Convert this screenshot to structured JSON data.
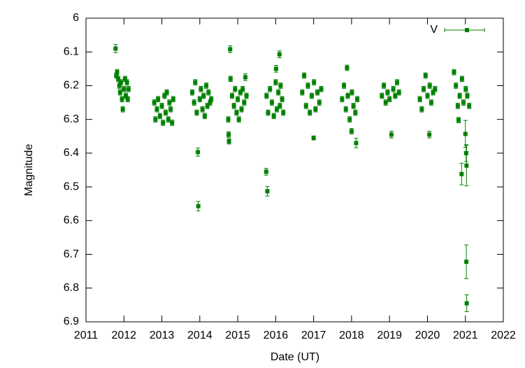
{
  "chart_data": {
    "type": "scatter",
    "x_label": "Date (UT)",
    "y_label": "Magnitude",
    "xlim": [
      2011,
      2022
    ],
    "xticks": [
      2011,
      2012,
      2013,
      2014,
      2015,
      2016,
      2017,
      2018,
      2019,
      2020,
      2021,
      2022
    ],
    "ylim": [
      6,
      6.9
    ],
    "yticks": [
      6,
      6.1,
      6.2,
      6.3,
      6.4,
      6.5,
      6.6,
      6.7,
      6.8,
      6.9
    ],
    "y_inverted": true,
    "legend": "top-right",
    "x": [
      2011.78,
      2011.8,
      2011.82,
      2011.85,
      2011.88,
      2011.9,
      2011.92,
      2011.95,
      2011.97,
      2012.0,
      2012.03,
      2012.05,
      2012.08,
      2012.1,
      2012.12,
      2012.8,
      2012.83,
      2012.87,
      2012.9,
      2012.95,
      2013.0,
      2013.03,
      2013.07,
      2013.1,
      2013.13,
      2013.17,
      2013.2,
      2013.23,
      2013.27,
      2013.3,
      2013.8,
      2013.85,
      2013.88,
      2013.92,
      2013.95,
      2013.96,
      2014.0,
      2014.03,
      2014.07,
      2014.1,
      2014.13,
      2014.17,
      2014.2,
      2014.23,
      2014.27,
      2014.3,
      2014.75,
      2014.76,
      2014.77,
      2014.8,
      2014.81,
      2014.85,
      2014.9,
      2014.93,
      2014.97,
      2015.0,
      2015.03,
      2015.07,
      2015.1,
      2015.13,
      2015.17,
      2015.2,
      2015.23,
      2015.75,
      2015.78,
      2015.76,
      2015.8,
      2015.85,
      2015.9,
      2015.95,
      2016.0,
      2016.01,
      2016.03,
      2016.07,
      2016.1,
      2016.11,
      2016.13,
      2016.17,
      2016.2,
      2016.7,
      2016.75,
      2016.8,
      2016.85,
      2016.9,
      2016.95,
      2017.0,
      2017.01,
      2017.05,
      2017.1,
      2017.15,
      2017.2,
      2017.75,
      2017.8,
      2017.85,
      2017.88,
      2017.9,
      2017.95,
      2018.0,
      2018.01,
      2018.05,
      2018.1,
      2018.12,
      2018.15,
      2018.8,
      2018.85,
      2018.9,
      2018.95,
      2019.0,
      2019.05,
      2019.1,
      2019.15,
      2019.2,
      2019.25,
      2019.8,
      2019.85,
      2019.9,
      2019.95,
      2020.0,
      2020.05,
      2020.06,
      2020.1,
      2020.15,
      2020.2,
      2020.7,
      2020.75,
      2020.8,
      2020.82,
      2020.85,
      2020.9,
      2020.91,
      2020.95,
      2021.0,
      2021.01,
      2021.02,
      2021.03,
      2021.025,
      2021.035,
      2021.05,
      2021.1
    ],
    "series": [
      {
        "name": "V",
        "color": "#008000",
        "values": [
          6.09,
          6.17,
          6.16,
          6.18,
          6.2,
          6.22,
          6.19,
          6.24,
          6.27,
          6.21,
          6.18,
          6.23,
          6.19,
          6.24,
          6.21,
          6.25,
          6.3,
          6.27,
          6.24,
          6.29,
          6.26,
          6.31,
          6.23,
          6.28,
          6.22,
          6.3,
          6.25,
          6.27,
          6.31,
          6.24,
          6.22,
          6.25,
          6.19,
          6.28,
          6.397,
          6.557,
          6.24,
          6.21,
          6.27,
          6.23,
          6.29,
          6.2,
          6.26,
          6.22,
          6.25,
          6.24,
          6.3,
          6.345,
          6.365,
          6.092,
          6.18,
          6.23,
          6.26,
          6.21,
          6.28,
          6.24,
          6.3,
          6.22,
          6.27,
          6.21,
          6.25,
          6.175,
          6.23,
          6.455,
          6.513,
          6.23,
          6.28,
          6.21,
          6.25,
          6.29,
          6.19,
          6.15,
          6.27,
          6.22,
          6.107,
          6.26,
          6.2,
          6.24,
          6.28,
          6.22,
          6.17,
          6.26,
          6.2,
          6.28,
          6.23,
          6.355,
          6.19,
          6.27,
          6.22,
          6.25,
          6.21,
          6.24,
          6.2,
          6.27,
          6.147,
          6.23,
          6.3,
          6.335,
          6.22,
          6.26,
          6.28,
          6.37,
          6.24,
          6.23,
          6.2,
          6.25,
          6.22,
          6.24,
          6.345,
          6.21,
          6.23,
          6.19,
          6.22,
          6.24,
          6.27,
          6.21,
          6.17,
          6.23,
          6.345,
          6.2,
          6.25,
          6.22,
          6.21,
          6.16,
          6.2,
          6.26,
          6.302,
          6.23,
          6.462,
          6.18,
          6.25,
          6.343,
          6.21,
          6.4,
          6.437,
          6.722,
          6.845,
          6.23,
          6.26
        ],
        "errors": [
          0.012,
          0.008,
          0.008,
          0.008,
          0.008,
          0.008,
          0.008,
          0.008,
          0.008,
          0.008,
          0.008,
          0.008,
          0.008,
          0.008,
          0.008,
          0.008,
          0.008,
          0.008,
          0.008,
          0.008,
          0.008,
          0.008,
          0.008,
          0.008,
          0.008,
          0.008,
          0.008,
          0.008,
          0.008,
          0.008,
          0.008,
          0.008,
          0.008,
          0.008,
          0.012,
          0.014,
          0.008,
          0.008,
          0.008,
          0.008,
          0.008,
          0.008,
          0.008,
          0.008,
          0.008,
          0.008,
          0.008,
          0.008,
          0.008,
          0.01,
          0.008,
          0.008,
          0.008,
          0.008,
          0.008,
          0.008,
          0.008,
          0.008,
          0.008,
          0.008,
          0.008,
          0.01,
          0.008,
          0.01,
          0.014,
          0.008,
          0.008,
          0.008,
          0.008,
          0.008,
          0.008,
          0.01,
          0.008,
          0.008,
          0.01,
          0.008,
          0.008,
          0.008,
          0.008,
          0.008,
          0.008,
          0.008,
          0.008,
          0.008,
          0.008,
          0.006,
          0.008,
          0.008,
          0.008,
          0.008,
          0.008,
          0.008,
          0.008,
          0.008,
          0.008,
          0.008,
          0.008,
          0.008,
          0.008,
          0.008,
          0.008,
          0.014,
          0.008,
          0.008,
          0.008,
          0.008,
          0.008,
          0.008,
          0.01,
          0.008,
          0.008,
          0.008,
          0.008,
          0.008,
          0.008,
          0.008,
          0.008,
          0.008,
          0.01,
          0.008,
          0.008,
          0.008,
          0.008,
          0.008,
          0.008,
          0.008,
          0.008,
          0.008,
          0.032,
          0.008,
          0.008,
          0.04,
          0.008,
          0.025,
          0.06,
          0.05,
          0.025,
          0.008,
          0.008
        ]
      }
    ]
  }
}
